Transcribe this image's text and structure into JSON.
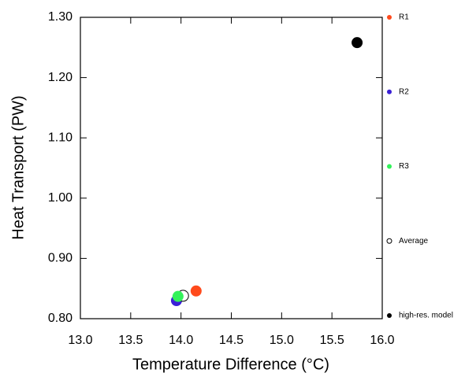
{
  "chart_data": {
    "type": "scatter",
    "xlabel": "Temperature Difference (°C)",
    "ylabel": "Heat Transport (PW)",
    "xlim": [
      13.0,
      16.0
    ],
    "xticks": [
      {
        "value": 13.0,
        "label": "13.0"
      },
      {
        "value": 13.5,
        "label": "13.5"
      },
      {
        "value": 14.0,
        "label": "14.0"
      },
      {
        "value": 14.5,
        "label": "14.5"
      },
      {
        "value": 15.0,
        "label": "15.0"
      },
      {
        "value": 15.5,
        "label": "15.5"
      },
      {
        "value": 16.0,
        "label": "16.0"
      }
    ],
    "ylim": [
      0.8,
      1.3
    ],
    "yticks": [
      {
        "value": 0.8,
        "label": "0.80"
      },
      {
        "value": 0.9,
        "label": "0.90"
      },
      {
        "value": 1.0,
        "label": "1.00"
      },
      {
        "value": 1.1,
        "label": "1.10"
      },
      {
        "value": 1.2,
        "label": "1.20"
      },
      {
        "value": 1.3,
        "label": "1.30"
      }
    ],
    "series": [
      {
        "name": "R1",
        "color": "#ff4a1c",
        "marker": "filled",
        "x": [
          14.15
        ],
        "y": [
          0.846
        ]
      },
      {
        "name": "R2",
        "color": "#3a1fd6",
        "marker": "filled",
        "x": [
          13.955
        ],
        "y": [
          0.83
        ]
      },
      {
        "name": "R3",
        "color": "#33f25a",
        "marker": "filled",
        "x": [
          13.97
        ],
        "y": [
          0.837
        ]
      },
      {
        "name": "Average",
        "color": "#000000",
        "marker": "open",
        "x": [
          14.02
        ],
        "y": [
          0.838
        ]
      },
      {
        "name": "high-res. model",
        "color": "#000000",
        "marker": "filled",
        "x": [
          15.75
        ],
        "y": [
          1.258
        ]
      }
    ]
  }
}
